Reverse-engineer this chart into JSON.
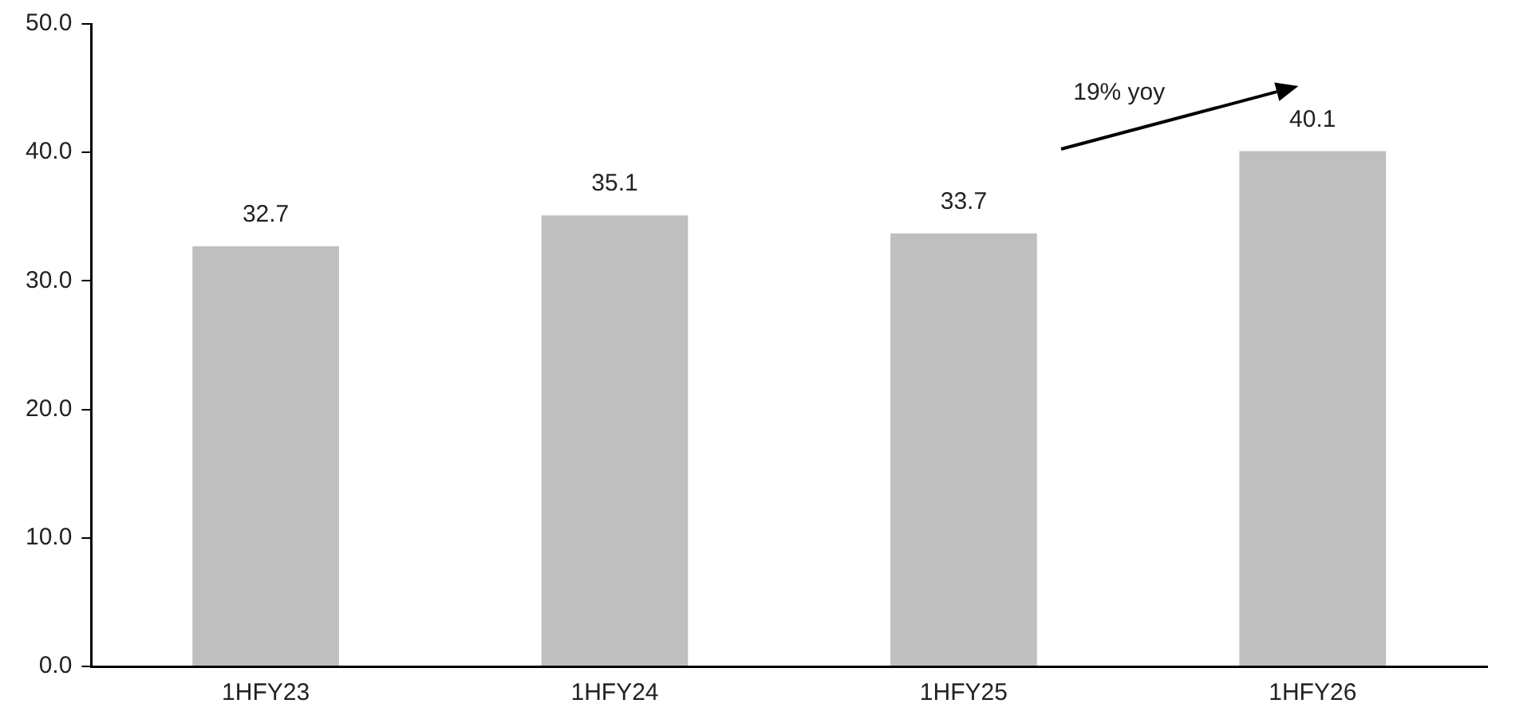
{
  "chart_data": {
    "type": "bar",
    "categories": [
      "1HFY23",
      "1HFY24",
      "1HFY25",
      "1HFY26"
    ],
    "values": [
      32.7,
      35.1,
      33.7,
      40.1
    ],
    "color": "#bfbfbf",
    "ylim": [
      0,
      50
    ],
    "yticks": [
      {
        "value": 0,
        "label": "0.0"
      },
      {
        "value": 10,
        "label": "10.0"
      },
      {
        "value": 20,
        "label": "20.0"
      },
      {
        "value": 30,
        "label": "30.0"
      },
      {
        "value": 40,
        "label": "40.0"
      },
      {
        "value": 50,
        "label": "50.0"
      }
    ],
    "grid": false,
    "legend": false,
    "data_labels": true,
    "annotations": [
      "19% yoy"
    ]
  }
}
